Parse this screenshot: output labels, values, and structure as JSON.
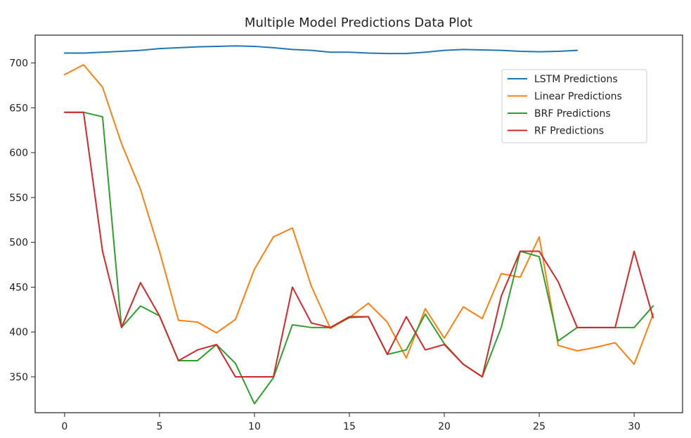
{
  "chart_data": {
    "type": "line",
    "title": "Multiple Model Predictions Data Plot",
    "xlabel": "",
    "ylabel": "",
    "xlim": [
      -1.55,
      32.55
    ],
    "ylim": [
      310,
      731
    ],
    "x_ticks": [
      0,
      5,
      10,
      15,
      20,
      25,
      30
    ],
    "y_ticks": [
      350,
      400,
      450,
      500,
      550,
      600,
      650,
      700
    ],
    "grid": false,
    "legend_position": "upper-right",
    "series": [
      {
        "name": "LSTM Predictions",
        "color": "#1f77b4",
        "x": [
          0,
          1,
          2,
          3,
          4,
          5,
          6,
          7,
          8,
          9,
          10,
          11,
          12,
          13,
          14,
          15,
          16,
          17,
          18,
          19,
          20,
          21,
          22,
          23,
          24,
          25,
          26,
          27
        ],
        "values": [
          711,
          711,
          712,
          713,
          714,
          716,
          717,
          718,
          718.5,
          719,
          718.5,
          717,
          715,
          714,
          712,
          712,
          711,
          710.5,
          710.5,
          712,
          714,
          715,
          714.5,
          714,
          713,
          712.5,
          713,
          714
        ]
      },
      {
        "name": "Linear Predictions",
        "color": "#ff7f0e",
        "x": [
          0,
          1,
          2,
          3,
          4,
          5,
          6,
          7,
          8,
          9,
          10,
          11,
          12,
          13,
          14,
          15,
          16,
          17,
          18,
          19,
          20,
          21,
          22,
          23,
          24,
          25,
          26,
          27,
          28,
          29,
          30,
          31
        ],
        "values": [
          687,
          698,
          673,
          610,
          559,
          490,
          413,
          411,
          399,
          414,
          470,
          506,
          516,
          451,
          404,
          416,
          432,
          411,
          371,
          426,
          393,
          428,
          415,
          465,
          461,
          506,
          385,
          379,
          383,
          388,
          364,
          420
        ]
      },
      {
        "name": "BRF Predictions",
        "color": "#2ca02c",
        "x": [
          0,
          1,
          2,
          3,
          4,
          5,
          6,
          7,
          8,
          9,
          10,
          11,
          12,
          13,
          14,
          15,
          16,
          17,
          18,
          19,
          20,
          21,
          22,
          23,
          24,
          25,
          26,
          27,
          28,
          29,
          30,
          31
        ],
        "values": [
          645,
          645,
          640,
          405,
          429,
          418,
          368,
          368,
          386,
          365,
          320,
          349,
          408,
          405,
          405,
          416,
          417,
          375,
          380,
          420,
          387,
          364,
          350,
          405,
          490,
          484,
          390,
          405,
          405,
          405,
          405,
          429
        ]
      },
      {
        "name": "RF Predictions",
        "color": "#d62728",
        "x": [
          0,
          1,
          2,
          3,
          4,
          5,
          6,
          7,
          8,
          9,
          10,
          11,
          12,
          13,
          14,
          15,
          16,
          17,
          18,
          19,
          20,
          21,
          22,
          23,
          24,
          25,
          26,
          27,
          28,
          29,
          30,
          31
        ],
        "values": [
          645,
          645,
          490,
          405,
          455,
          418,
          368,
          380,
          386,
          350,
          350,
          350,
          450,
          410,
          405,
          417,
          417,
          375,
          417,
          380,
          386,
          364,
          350,
          440,
          490,
          490,
          456,
          405,
          405,
          405,
          490,
          416
        ]
      }
    ]
  }
}
